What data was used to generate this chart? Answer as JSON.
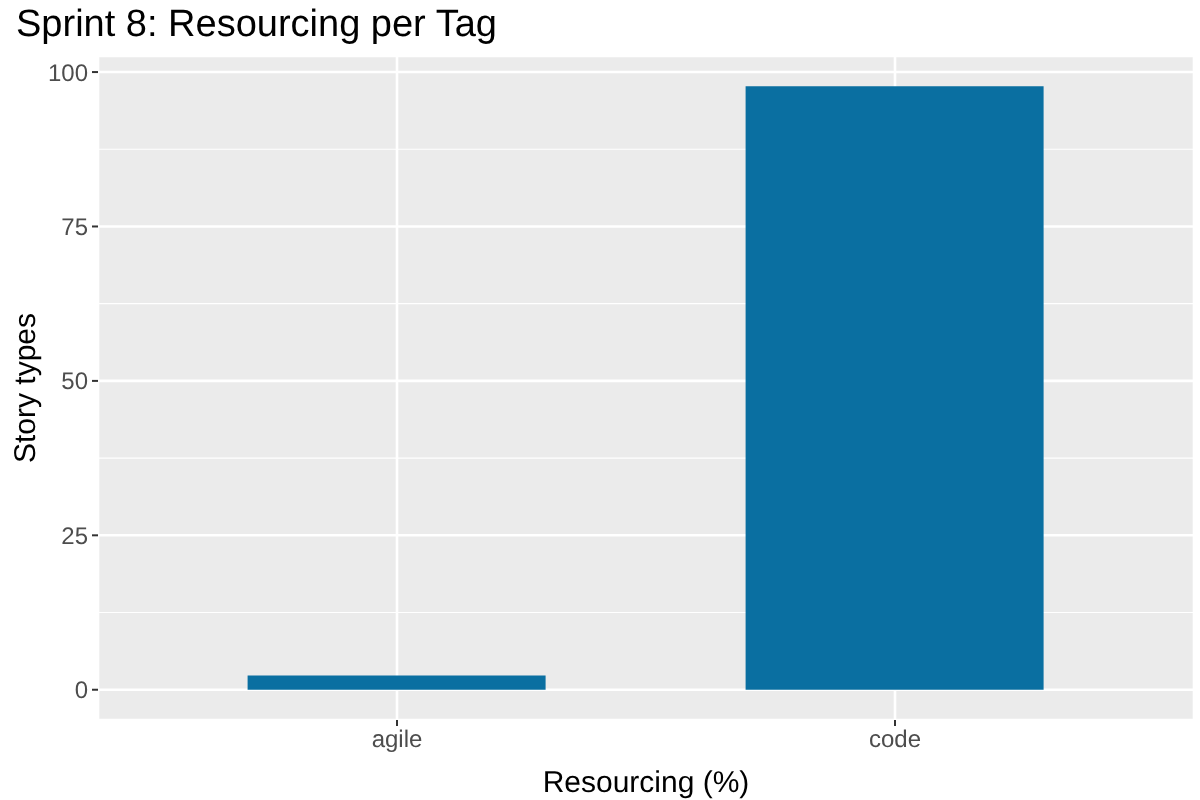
{
  "chart_data": {
    "type": "bar",
    "title": "Sprint 8: Resourcing per Tag",
    "xlabel": "Resourcing (%)",
    "ylabel": "Story types",
    "categories": [
      "agile",
      "code"
    ],
    "values": [
      2.3,
      97.7
    ],
    "color": "#0a6fa1",
    "ylim": [
      -4.9,
      102.6
    ],
    "yticks": [
      0,
      25,
      50,
      75,
      100
    ],
    "grid": true
  }
}
